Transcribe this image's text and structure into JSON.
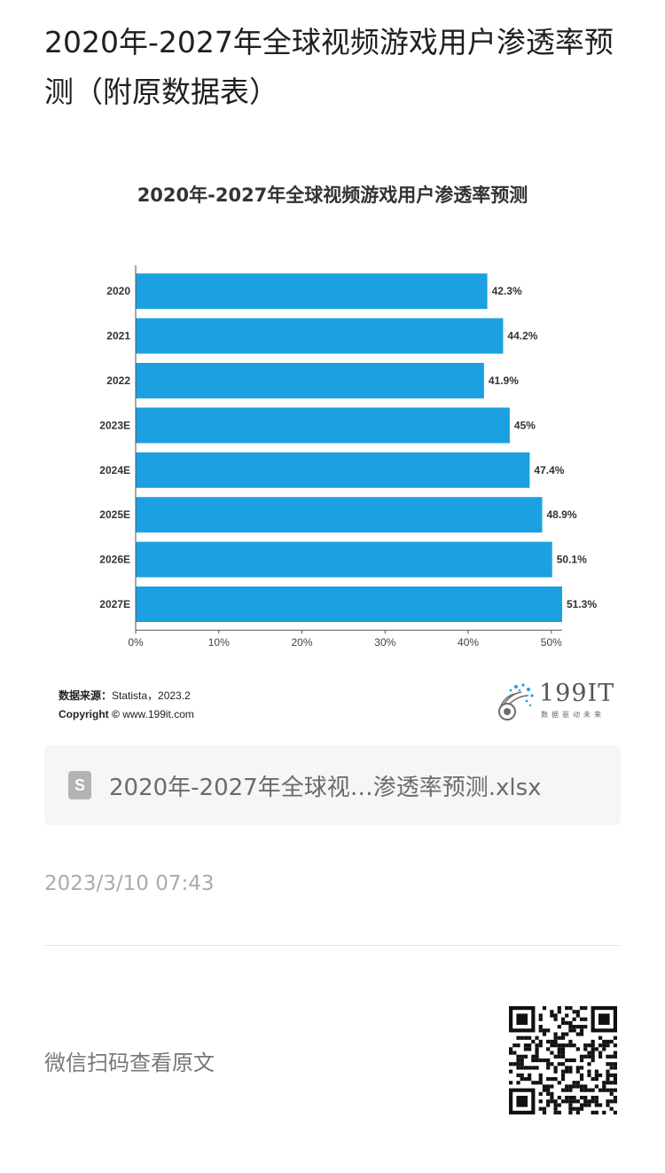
{
  "article": {
    "title": "2020年-2027年全球视频游戏用户渗透率预测（附原数据表）",
    "source_label": "数据来源：",
    "source_value": "Statista，2023.2",
    "copyright_label": "Copyright ©",
    "copyright_value": "www.199it.com",
    "logo_text": "199IT",
    "logo_slogan": "数据驱动未来",
    "attachment_name": "2020年-2027年全球视…渗透率预测.xlsx",
    "publish_time": "2023/3/10 07:43",
    "qr_hint": "微信扫码查看原文"
  },
  "colors": {
    "bar": "#1ba1e2",
    "axis": "#555555",
    "text": "#333333"
  },
  "chart_data": {
    "type": "bar",
    "orientation": "horizontal",
    "title": "2020年-2027年全球视频游戏用户渗透率预测",
    "categories": [
      "2020",
      "2021",
      "2022",
      "2023E",
      "2024E",
      "2025E",
      "2026E",
      "2027E"
    ],
    "values": [
      42.3,
      44.2,
      41.9,
      45,
      47.4,
      48.9,
      50.1,
      51.3
    ],
    "value_labels": [
      "42.3%",
      "44.2%",
      "41.9%",
      "45%",
      "47.4%",
      "48.9%",
      "50.1%",
      "51.3%"
    ],
    "x_ticks": [
      "0%",
      "10%",
      "20%",
      "30%",
      "40%",
      "50%"
    ],
    "xlim": [
      0,
      51.3
    ],
    "grid": false,
    "legend": "none"
  }
}
